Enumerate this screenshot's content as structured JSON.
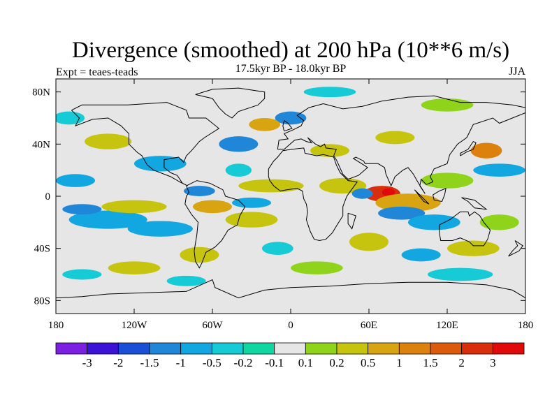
{
  "chart_data": {
    "type": "heatmap",
    "title": "Divergence (smoothed) at 200 hPa (10**6 m/s)",
    "subtitle": "17.5kyr BP - 18.0kyr BP",
    "left_label": "Expt = teaes-teads",
    "right_label": "JJA",
    "x_ticks": [
      "180",
      "120W",
      "60W",
      "0",
      "60E",
      "120E",
      "180"
    ],
    "x_tick_values": [
      -180,
      -120,
      -60,
      0,
      60,
      120,
      180
    ],
    "y_ticks": [
      "80N",
      "40N",
      "0",
      "40S",
      "80S"
    ],
    "y_tick_values": [
      80,
      40,
      0,
      -40,
      -80
    ],
    "xlim": [
      -180,
      180
    ],
    "ylim": [
      -90,
      90
    ],
    "colorbar": {
      "colors": [
        "#7b1fe0",
        "#3b12d6",
        "#1a4fd6",
        "#1f86d8",
        "#12a7e0",
        "#16cbd6",
        "#10d7a0",
        "#e6e6e6",
        "#8fd41a",
        "#c6c40f",
        "#d8a412",
        "#dc800e",
        "#dc5a0c",
        "#d82e0c",
        "#e00a0a"
      ],
      "labels": [
        "-3",
        "-2",
        "-1.5",
        "-1",
        "-0.5",
        "-0.2",
        "-0.1",
        "0.1",
        "0.2",
        "0.5",
        "1",
        "1.5",
        "2",
        "3"
      ]
    },
    "features": [
      {
        "lon": 70,
        "lat": 2,
        "rx": 14,
        "ry": 6,
        "level": 14
      },
      {
        "lon": 75,
        "lat": 3,
        "rx": 5,
        "ry": 3,
        "level": 15
      },
      {
        "lon": 90,
        "lat": -5,
        "rx": 25,
        "ry": 7,
        "level": 11
      },
      {
        "lon": 40,
        "lat": 8,
        "rx": 18,
        "ry": 6,
        "level": 10
      },
      {
        "lon": 55,
        "lat": 2,
        "rx": 8,
        "ry": 4,
        "level": 4
      },
      {
        "lon": 85,
        "lat": -13,
        "rx": 18,
        "ry": 5,
        "level": 4
      },
      {
        "lon": 110,
        "lat": -20,
        "rx": 20,
        "ry": 6,
        "level": 5
      },
      {
        "lon": -140,
        "lat": -18,
        "rx": 30,
        "ry": 7,
        "level": 5
      },
      {
        "lon": -100,
        "lat": -25,
        "rx": 25,
        "ry": 6,
        "level": 5
      },
      {
        "lon": -160,
        "lat": -10,
        "rx": 15,
        "ry": 4,
        "level": 4
      },
      {
        "lon": -120,
        "lat": -8,
        "rx": 25,
        "ry": 5,
        "level": 10
      },
      {
        "lon": -60,
        "lat": -8,
        "rx": 15,
        "ry": 5,
        "level": 11
      },
      {
        "lon": -30,
        "lat": -18,
        "rx": 20,
        "ry": 6,
        "level": 10
      },
      {
        "lon": -70,
        "lat": 4,
        "rx": 12,
        "ry": 4,
        "level": 4
      },
      {
        "lon": -15,
        "lat": 8,
        "rx": 25,
        "ry": 5,
        "level": 10
      },
      {
        "lon": -30,
        "lat": -5,
        "rx": 15,
        "ry": 4,
        "level": 5
      },
      {
        "lon": 160,
        "lat": 20,
        "rx": 20,
        "ry": 5,
        "level": 5
      },
      {
        "lon": 120,
        "lat": 12,
        "rx": 20,
        "ry": 6,
        "level": 9
      },
      {
        "lon": -165,
        "lat": 12,
        "rx": 15,
        "ry": 5,
        "level": 5
      },
      {
        "lon": -100,
        "lat": 25,
        "rx": 20,
        "ry": 6,
        "level": 5
      },
      {
        "lon": -40,
        "lat": 40,
        "rx": 15,
        "ry": 6,
        "level": 4
      },
      {
        "lon": 30,
        "lat": 35,
        "rx": 15,
        "ry": 5,
        "level": 10
      },
      {
        "lon": 150,
        "lat": 35,
        "rx": 12,
        "ry": 6,
        "level": 12
      },
      {
        "lon": 80,
        "lat": 45,
        "rx": 15,
        "ry": 5,
        "level": 10
      },
      {
        "lon": 0,
        "lat": 60,
        "rx": 12,
        "ry": 5,
        "level": 4
      },
      {
        "lon": -140,
        "lat": 42,
        "rx": 18,
        "ry": 6,
        "level": 10
      },
      {
        "lon": -20,
        "lat": 55,
        "rx": 12,
        "ry": 5,
        "level": 11
      },
      {
        "lon": 30,
        "lat": 80,
        "rx": 20,
        "ry": 4,
        "level": 6
      },
      {
        "lon": 120,
        "lat": 70,
        "rx": 20,
        "ry": 5,
        "level": 9
      },
      {
        "lon": -170,
        "lat": 60,
        "rx": 12,
        "ry": 5,
        "level": 6
      },
      {
        "lon": 60,
        "lat": -35,
        "rx": 15,
        "ry": 7,
        "level": 10
      },
      {
        "lon": -70,
        "lat": -45,
        "rx": 15,
        "ry": 6,
        "level": 10
      },
      {
        "lon": -120,
        "lat": -55,
        "rx": 20,
        "ry": 5,
        "level": 10
      },
      {
        "lon": -160,
        "lat": -60,
        "rx": 15,
        "ry": 4,
        "level": 6
      },
      {
        "lon": 130,
        "lat": -60,
        "rx": 25,
        "ry": 5,
        "level": 6
      },
      {
        "lon": 20,
        "lat": -55,
        "rx": 20,
        "ry": 5,
        "level": 9
      },
      {
        "lon": 140,
        "lat": -40,
        "rx": 20,
        "ry": 6,
        "level": 10
      },
      {
        "lon": -10,
        "lat": -40,
        "rx": 12,
        "ry": 5,
        "level": 6
      },
      {
        "lon": 100,
        "lat": -45,
        "rx": 15,
        "ry": 5,
        "level": 5
      },
      {
        "lon": -80,
        "lat": -65,
        "rx": 15,
        "ry": 4,
        "level": 6
      },
      {
        "lon": 160,
        "lat": -20,
        "rx": 15,
        "ry": 6,
        "level": 9
      },
      {
        "lon": -40,
        "lat": 20,
        "rx": 10,
        "ry": 5,
        "level": 6
      }
    ]
  }
}
